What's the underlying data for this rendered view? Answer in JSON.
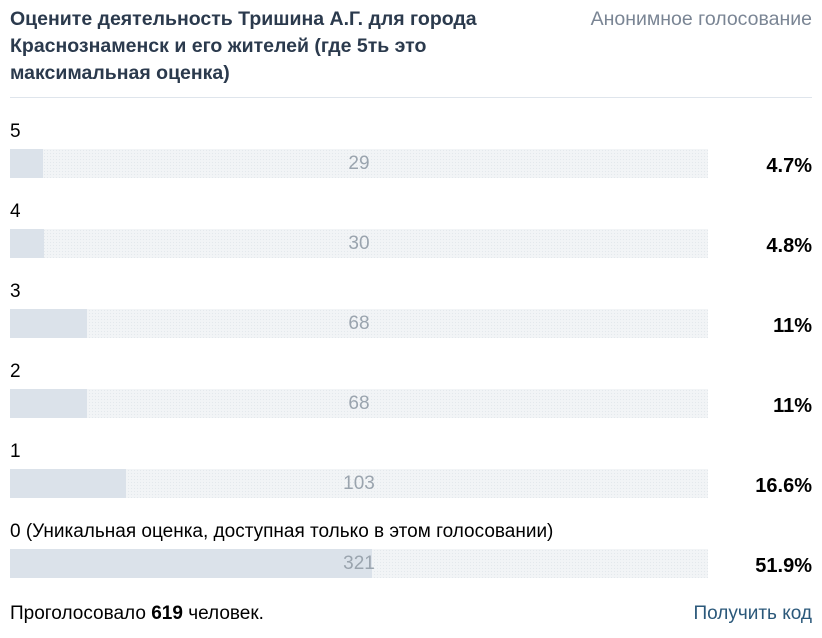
{
  "poll": {
    "title": "Оцените деятельность Тришина А.Г. для города Краснознаменск и его жителей (где 5ть это максимальная оценка)",
    "anonymous_label": "Анонимное голосование",
    "options": [
      {
        "label": "5",
        "count": "29",
        "percent": "4.7%",
        "share": 4.7
      },
      {
        "label": "4",
        "count": "30",
        "percent": "4.8%",
        "share": 4.8
      },
      {
        "label": "3",
        "count": "68",
        "percent": "11%",
        "share": 11
      },
      {
        "label": "2",
        "count": "68",
        "percent": "11%",
        "share": 11
      },
      {
        "label": "1",
        "count": "103",
        "percent": "16.6%",
        "share": 16.6
      },
      {
        "label": "0 (Уникальная оценка, доступная только в этом голосовании)",
        "count": "321",
        "percent": "51.9%",
        "share": 51.9
      }
    ],
    "footer": {
      "voted_prefix": "Проголосовало",
      "voted_total": "619",
      "voted_suffix": "человек.",
      "get_code_label": "Получить код"
    }
  },
  "colors": {
    "title": "#2b3a4d",
    "muted": "#7a8594",
    "bar_fill": "#dbe2ea",
    "bar_track": "#f2f4f6",
    "link": "#2b587a"
  }
}
